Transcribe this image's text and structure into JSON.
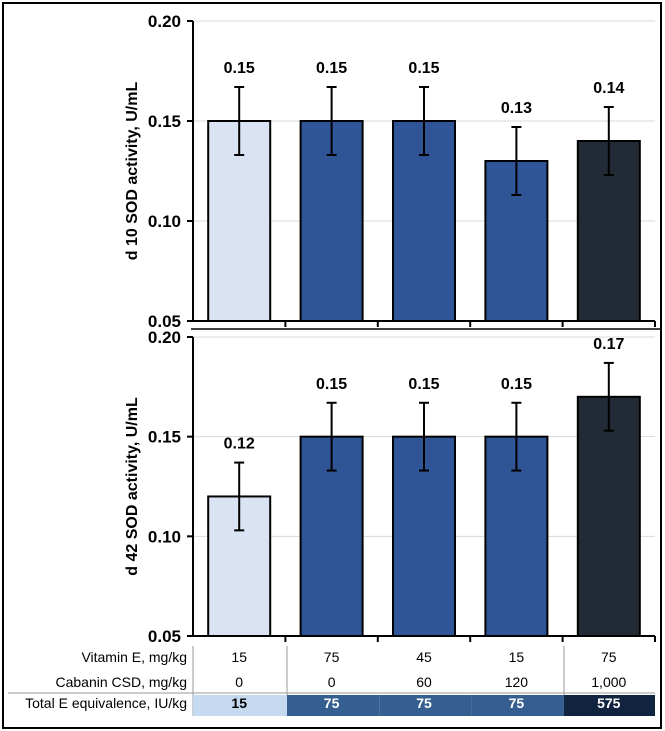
{
  "chart_data": [
    {
      "type": "bar",
      "ylabel": "d 10 SOD activity, U/mL",
      "ylim": [
        0.05,
        0.2
      ],
      "yticks": [
        "0.05",
        "0.10",
        "0.15",
        "0.20"
      ],
      "grid": true,
      "values": [
        0.15,
        0.15,
        0.15,
        0.13,
        0.14
      ],
      "labels": [
        "0.15",
        "0.15",
        "0.15",
        "0.13",
        "0.14"
      ],
      "error": [
        0.017,
        0.017,
        0.017,
        0.017,
        0.017
      ]
    },
    {
      "type": "bar",
      "ylabel": "d 42 SOD activity, U/mL",
      "ylim": [
        0.05,
        0.2
      ],
      "yticks": [
        "0.05",
        "0.10",
        "0.15",
        "0.20"
      ],
      "grid": true,
      "values": [
        0.12,
        0.15,
        0.15,
        0.15,
        0.17
      ],
      "labels": [
        "0.12",
        "0.15",
        "0.15",
        "0.15",
        "0.17"
      ],
      "error": [
        0.017,
        0.017,
        0.017,
        0.017,
        0.017
      ]
    }
  ],
  "bar_colors": [
    "#DAE3F3",
    "#2F5597",
    "#2F5597",
    "#2F5597",
    "#222A35"
  ],
  "table": {
    "rows": [
      {
        "label": "Vitamin E, mg/kg",
        "values": [
          "15",
          "75",
          "45",
          "15",
          "75"
        ]
      },
      {
        "label": "Cabanin CSD, mg/kg",
        "values": [
          "0",
          "0",
          "60",
          "120",
          "1,000"
        ]
      },
      {
        "label": "Total E equivalence, IU/kg",
        "values": [
          "15",
          "75",
          "75",
          "75",
          "575"
        ]
      }
    ],
    "total_colors": [
      "#C5D9F1",
      "#355F91",
      "#355F91",
      "#355F91",
      "#10243F"
    ]
  }
}
